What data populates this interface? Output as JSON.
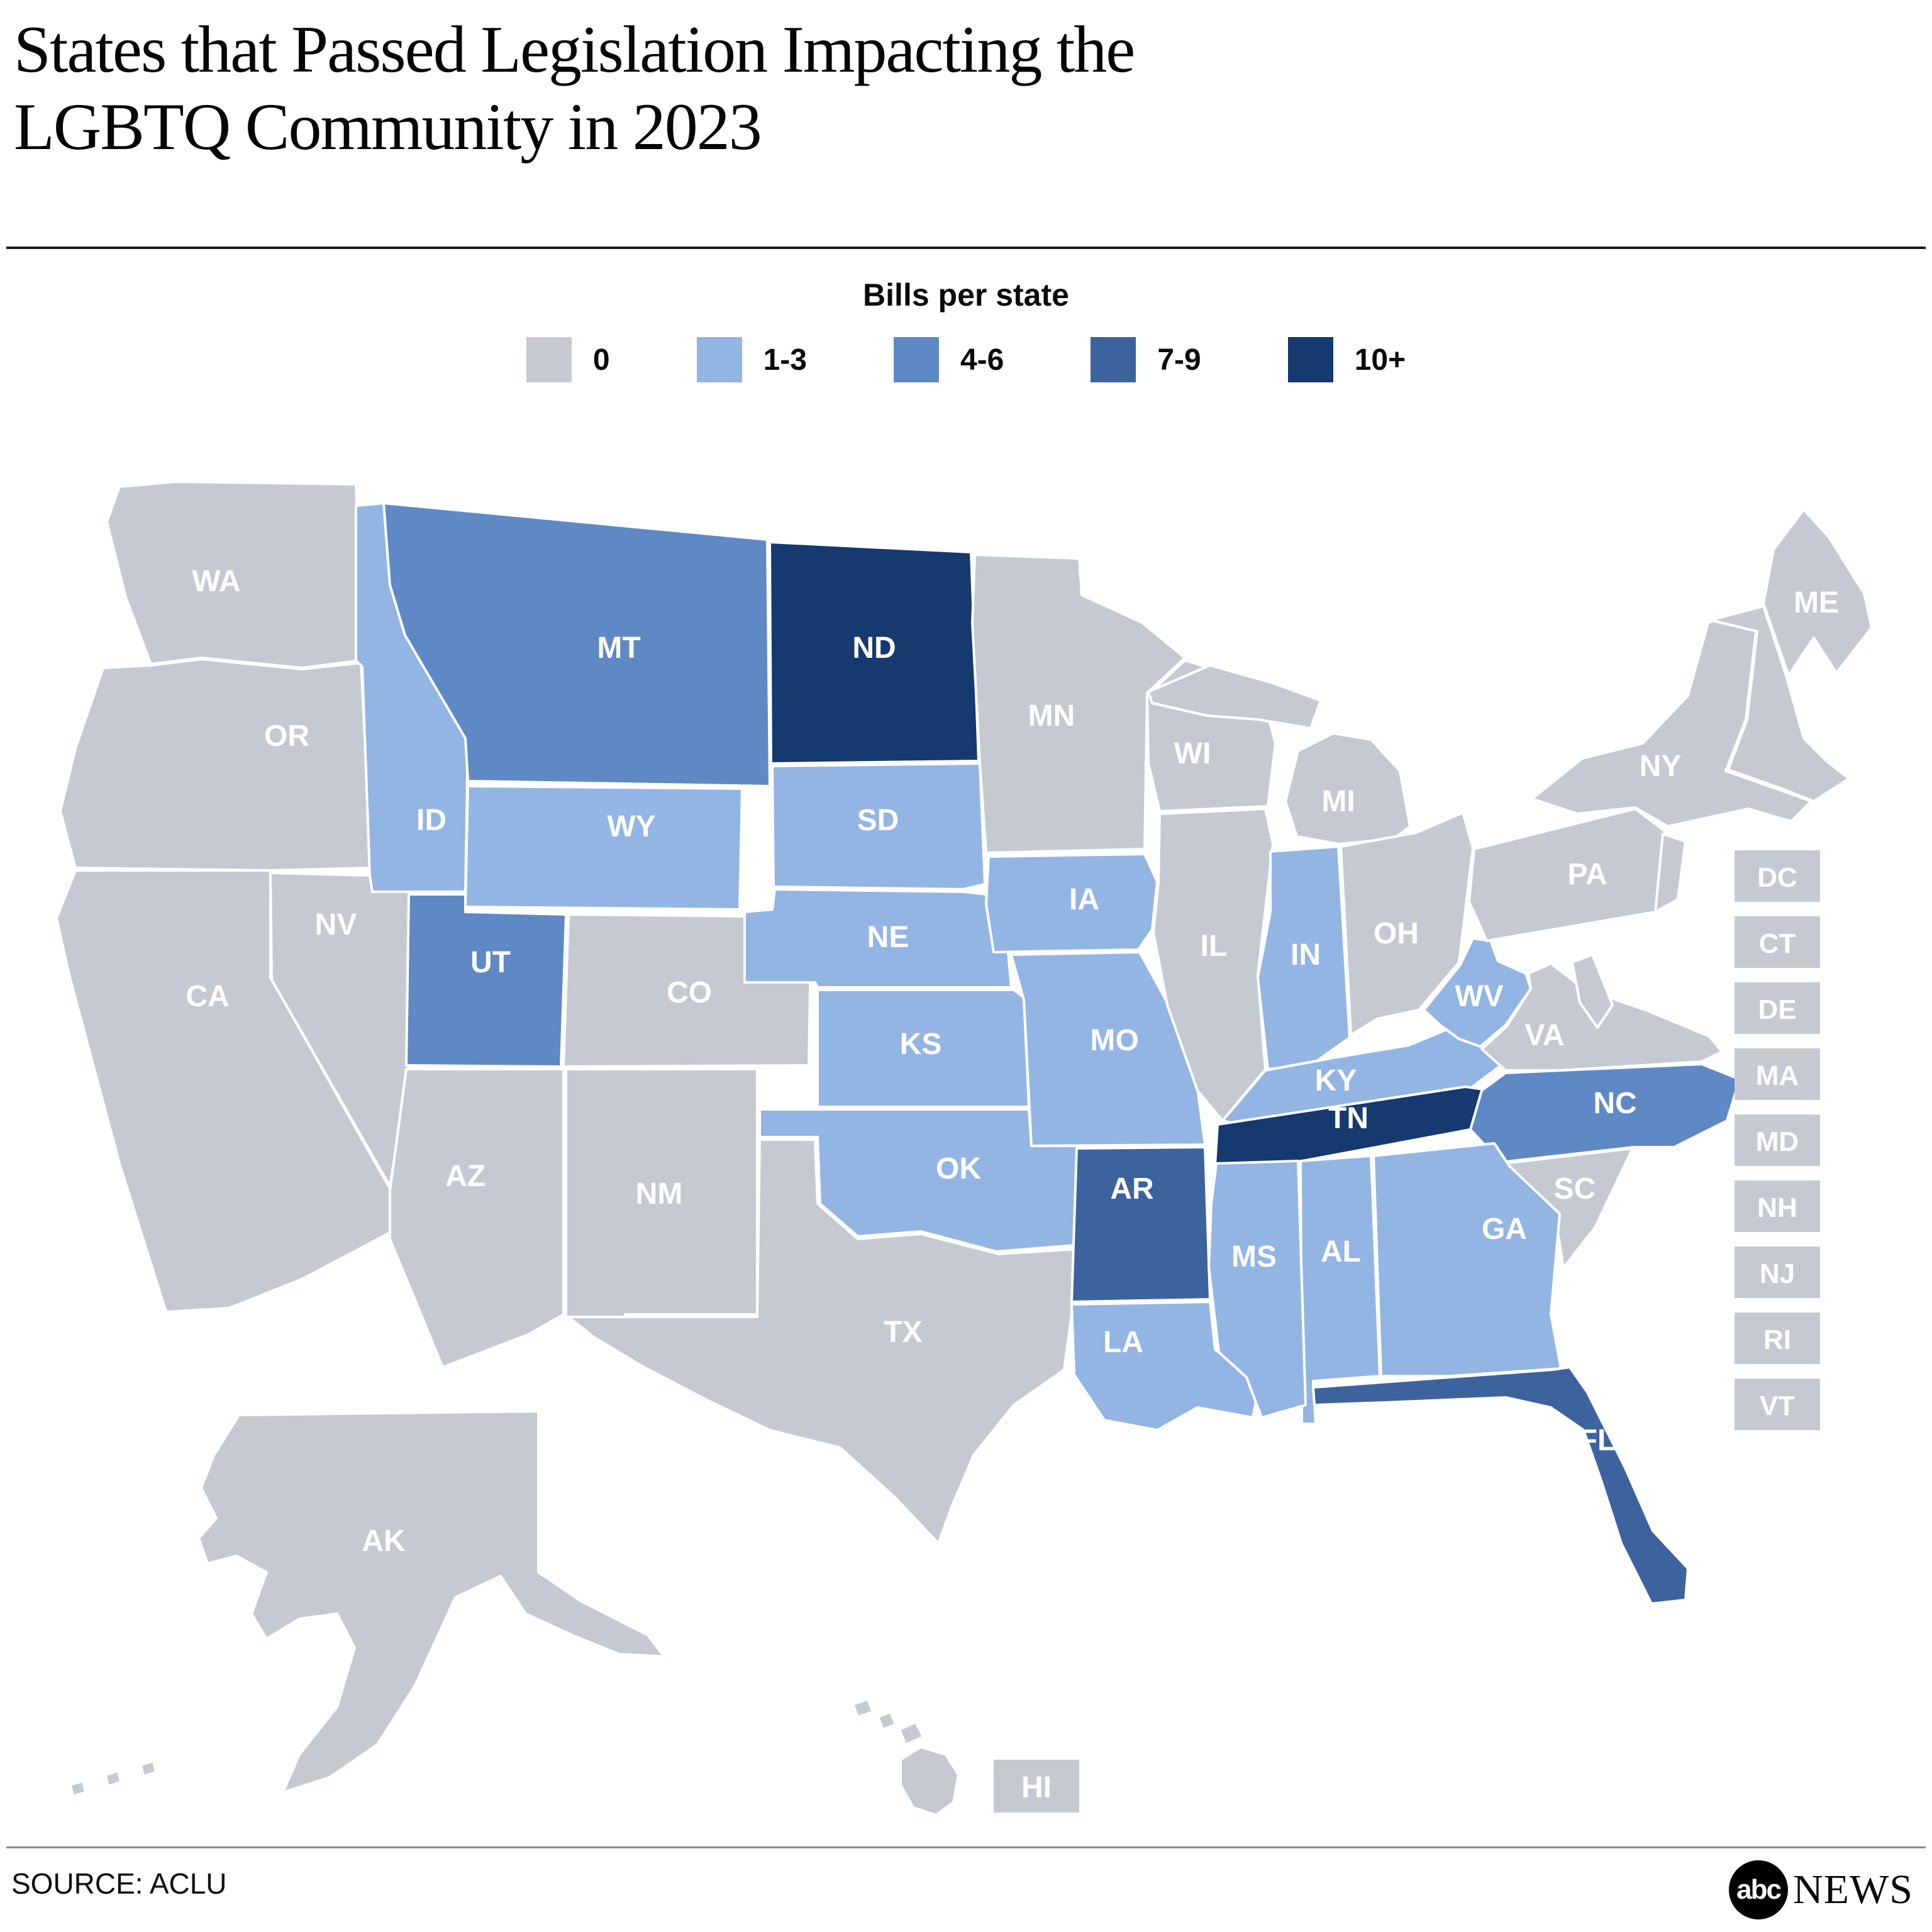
{
  "title": {
    "line1": "States that Passed Legislation Impacting the",
    "line2": "LGBTQ Community in 2023"
  },
  "legend": {
    "title": "Bills per state",
    "bins": [
      {
        "label": "0",
        "color": "#c5cad2"
      },
      {
        "label": "1-3",
        "color": "#93b5e3"
      },
      {
        "label": "4-6",
        "color": "#5e89c4"
      },
      {
        "label": "7-9",
        "color": "#3d639e"
      },
      {
        "label": "10+",
        "color": "#16396f"
      }
    ]
  },
  "map": {
    "stroke_color": "#ffffff",
    "label_color": "#ffffff",
    "states": [
      {
        "id": "WA",
        "bin": "0",
        "show_label": true
      },
      {
        "id": "OR",
        "bin": "0",
        "show_label": true
      },
      {
        "id": "CA",
        "bin": "0",
        "show_label": true
      },
      {
        "id": "NV",
        "bin": "0",
        "show_label": true
      },
      {
        "id": "ID",
        "bin": "1-3",
        "show_label": true
      },
      {
        "id": "MT",
        "bin": "4-6",
        "show_label": true
      },
      {
        "id": "WY",
        "bin": "1-3",
        "show_label": true
      },
      {
        "id": "UT",
        "bin": "4-6",
        "show_label": true
      },
      {
        "id": "CO",
        "bin": "0",
        "show_label": true
      },
      {
        "id": "AZ",
        "bin": "0",
        "show_label": true
      },
      {
        "id": "NM",
        "bin": "0",
        "show_label": true
      },
      {
        "id": "ND",
        "bin": "10+",
        "show_label": true
      },
      {
        "id": "SD",
        "bin": "1-3",
        "show_label": true
      },
      {
        "id": "NE",
        "bin": "1-3",
        "show_label": true
      },
      {
        "id": "KS",
        "bin": "1-3",
        "show_label": true
      },
      {
        "id": "OK",
        "bin": "1-3",
        "show_label": true
      },
      {
        "id": "TX",
        "bin": "0",
        "show_label": true
      },
      {
        "id": "MN",
        "bin": "0",
        "show_label": true
      },
      {
        "id": "IA",
        "bin": "1-3",
        "show_label": true
      },
      {
        "id": "MO",
        "bin": "1-3",
        "show_label": true
      },
      {
        "id": "AR",
        "bin": "7-9",
        "show_label": true
      },
      {
        "id": "LA",
        "bin": "1-3",
        "show_label": true
      },
      {
        "id": "WI",
        "bin": "0",
        "show_label": true
      },
      {
        "id": "IL",
        "bin": "0",
        "show_label": true
      },
      {
        "id": "IN",
        "bin": "1-3",
        "show_label": true
      },
      {
        "id": "MI_UP",
        "bin": "0",
        "show_label": false
      },
      {
        "id": "MI",
        "bin": "0",
        "show_label": true
      },
      {
        "id": "OH",
        "bin": "0",
        "show_label": true
      },
      {
        "id": "KY",
        "bin": "1-3",
        "show_label": true
      },
      {
        "id": "TN",
        "bin": "10+",
        "show_label": true
      },
      {
        "id": "WV",
        "bin": "1-3",
        "show_label": true
      },
      {
        "id": "VA",
        "bin": "0",
        "show_label": true
      },
      {
        "id": "NC",
        "bin": "4-6",
        "show_label": true
      },
      {
        "id": "SC",
        "bin": "0",
        "show_label": true
      },
      {
        "id": "GA",
        "bin": "1-3",
        "show_label": true
      },
      {
        "id": "AL",
        "bin": "1-3",
        "show_label": true
      },
      {
        "id": "MS",
        "bin": "1-3",
        "show_label": true
      },
      {
        "id": "FL",
        "bin": "7-9",
        "show_label": true
      },
      {
        "id": "PA",
        "bin": "0",
        "show_label": true
      },
      {
        "id": "NY",
        "bin": "0",
        "show_label": true
      },
      {
        "id": "NJ_SHAPE",
        "bin": "0",
        "show_label": false
      },
      {
        "id": "DELMARVA",
        "bin": "0",
        "show_label": false
      },
      {
        "id": "NEWENGLAND",
        "bin": "0",
        "show_label": false
      },
      {
        "id": "ME",
        "bin": "0",
        "show_label": true
      },
      {
        "id": "AK",
        "bin": "0",
        "show_label": true
      },
      {
        "id": "HI1",
        "bin": "0",
        "show_label": false
      },
      {
        "id": "HI2",
        "bin": "0",
        "show_label": false
      },
      {
        "id": "HI3",
        "bin": "0",
        "show_label": false
      },
      {
        "id": "HI4",
        "bin": "0",
        "show_label": false
      },
      {
        "id": "AL1",
        "bin": "0",
        "show_label": false
      },
      {
        "id": "AL2",
        "bin": "0",
        "show_label": false
      },
      {
        "id": "AL3",
        "bin": "0",
        "show_label": false
      }
    ],
    "side_boxes": [
      {
        "id": "DC",
        "bin": "0"
      },
      {
        "id": "CT",
        "bin": "0"
      },
      {
        "id": "DE",
        "bin": "0"
      },
      {
        "id": "MA",
        "bin": "0"
      },
      {
        "id": "MD",
        "bin": "0"
      },
      {
        "id": "NH",
        "bin": "0"
      },
      {
        "id": "NJ",
        "bin": "0"
      },
      {
        "id": "RI",
        "bin": "0"
      },
      {
        "id": "VT",
        "bin": "0"
      }
    ],
    "hi_box": {
      "id": "HI",
      "bin": "0"
    }
  },
  "footer": {
    "source": "SOURCE: ACLU",
    "logo_abc": "abc",
    "logo_news": "NEWS"
  },
  "chart_data": {
    "type": "choropleth",
    "title": "States that Passed Legislation Impacting the LGBTQ Community in 2023",
    "legend_title": "Bills per state",
    "bins": [
      {
        "label": "0",
        "color": "#c5cad2"
      },
      {
        "label": "1-3",
        "color": "#93b5e3"
      },
      {
        "label": "4-6",
        "color": "#5e89c4"
      },
      {
        "label": "7-9",
        "color": "#3d639e"
      },
      {
        "label": "10+",
        "color": "#16396f"
      }
    ],
    "states": {
      "WA": "0",
      "OR": "0",
      "CA": "0",
      "NV": "0",
      "AZ": "0",
      "NM": "0",
      "CO": "0",
      "TX": "0",
      "MN": "0",
      "WI": "0",
      "MI": "0",
      "IL": "0",
      "OH": "0",
      "PA": "0",
      "NY": "0",
      "VA": "0",
      "SC": "0",
      "ME": "0",
      "AK": "0",
      "HI": "0",
      "DC": "0",
      "CT": "0",
      "DE": "0",
      "MA": "0",
      "MD": "0",
      "NH": "0",
      "NJ": "0",
      "RI": "0",
      "VT": "0",
      "ID": "1-3",
      "WY": "1-3",
      "SD": "1-3",
      "NE": "1-3",
      "IA": "1-3",
      "KS": "1-3",
      "MO": "1-3",
      "OK": "1-3",
      "IN": "1-3",
      "KY": "1-3",
      "WV": "1-3",
      "LA": "1-3",
      "MS": "1-3",
      "AL": "1-3",
      "GA": "1-3",
      "MT": "4-6",
      "UT": "4-6",
      "NC": "4-6",
      "AR": "7-9",
      "FL": "7-9",
      "ND": "10+",
      "TN": "10+"
    },
    "source": "SOURCE: ACLU"
  }
}
